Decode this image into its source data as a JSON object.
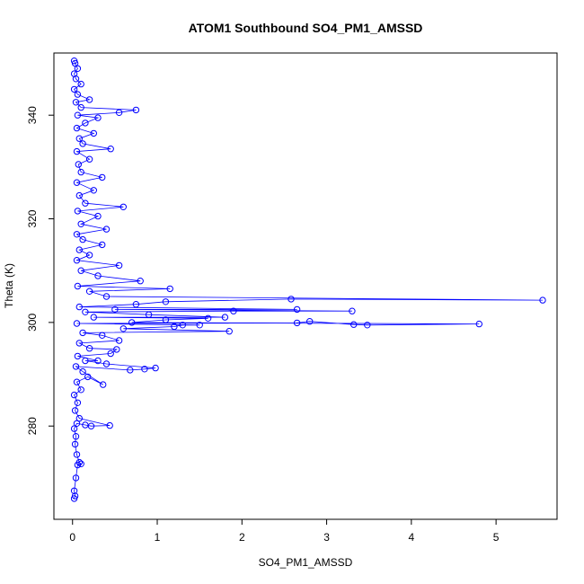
{
  "chart_data": {
    "type": "scatter",
    "title": "ATOM1 Southbound SO4_PM1_AMSSD",
    "xlabel": "SO4_PM1_AMSSD",
    "ylabel": "Theta (K)",
    "xlim": [
      -0.22,
      5.72
    ],
    "ylim": [
      262,
      352
    ],
    "xticks": [
      0,
      1,
      2,
      3,
      4,
      5
    ],
    "yticks": [
      280,
      300,
      320,
      340
    ],
    "grid": false,
    "point_color": "#0000ff",
    "line_color": "#0000ff",
    "series": [
      {
        "name": "",
        "points": [
          [
            0.02,
            266.0
          ],
          [
            0.03,
            266.5
          ],
          [
            0.02,
            267.5
          ],
          [
            0.04,
            270.0
          ],
          [
            0.06,
            272.5
          ],
          [
            0.1,
            272.7
          ],
          [
            0.08,
            273.0
          ],
          [
            0.05,
            274.5
          ],
          [
            0.03,
            276.5
          ],
          [
            0.04,
            278.0
          ],
          [
            0.02,
            279.5
          ],
          [
            0.05,
            280.5
          ],
          [
            0.15,
            280.2
          ],
          [
            0.22,
            280.0
          ],
          [
            0.44,
            280.1
          ],
          [
            0.08,
            281.5
          ],
          [
            0.03,
            283.0
          ],
          [
            0.06,
            284.5
          ],
          [
            0.02,
            286.0
          ],
          [
            0.1,
            287.0
          ],
          [
            0.05,
            288.5
          ],
          [
            0.18,
            289.5
          ],
          [
            0.36,
            288.0
          ],
          [
            0.12,
            290.5
          ],
          [
            0.04,
            291.5
          ],
          [
            0.68,
            290.8
          ],
          [
            0.85,
            291.0
          ],
          [
            0.98,
            291.2
          ],
          [
            0.4,
            292.0
          ],
          [
            0.15,
            292.6
          ],
          [
            0.3,
            292.6
          ],
          [
            0.06,
            293.5
          ],
          [
            0.45,
            294.0
          ],
          [
            0.52,
            294.8
          ],
          [
            0.2,
            295.0
          ],
          [
            0.08,
            296.0
          ],
          [
            0.55,
            296.5
          ],
          [
            0.35,
            297.5
          ],
          [
            0.12,
            298.0
          ],
          [
            1.85,
            298.3
          ],
          [
            0.6,
            298.8
          ],
          [
            1.2,
            299.2
          ],
          [
            1.3,
            299.5
          ],
          [
            1.5,
            299.5
          ],
          [
            0.05,
            299.8
          ],
          [
            2.65,
            299.9
          ],
          [
            2.8,
            300.2
          ],
          [
            3.32,
            299.6
          ],
          [
            3.48,
            299.5
          ],
          [
            4.8,
            299.7
          ],
          [
            0.7,
            300.0
          ],
          [
            1.1,
            300.5
          ],
          [
            1.6,
            300.8
          ],
          [
            0.25,
            301.0
          ],
          [
            1.8,
            301.0
          ],
          [
            0.9,
            301.5
          ],
          [
            0.15,
            302.0
          ],
          [
            1.9,
            302.2
          ],
          [
            3.3,
            302.2
          ],
          [
            0.5,
            302.5
          ],
          [
            2.65,
            302.5
          ],
          [
            0.08,
            303.0
          ],
          [
            0.75,
            303.5
          ],
          [
            1.1,
            304.0
          ],
          [
            2.58,
            304.5
          ],
          [
            5.55,
            304.3
          ],
          [
            0.4,
            305.0
          ],
          [
            0.2,
            306.0
          ],
          [
            1.15,
            306.5
          ],
          [
            0.06,
            307.0
          ],
          [
            0.8,
            308.0
          ],
          [
            0.3,
            309.0
          ],
          [
            0.1,
            310.0
          ],
          [
            0.55,
            311.0
          ],
          [
            0.05,
            312.0
          ],
          [
            0.2,
            313.0
          ],
          [
            0.08,
            314.0
          ],
          [
            0.35,
            315.0
          ],
          [
            0.12,
            316.0
          ],
          [
            0.05,
            317.0
          ],
          [
            0.4,
            318.0
          ],
          [
            0.1,
            319.0
          ],
          [
            0.3,
            320.5
          ],
          [
            0.06,
            321.5
          ],
          [
            0.6,
            322.3
          ],
          [
            0.15,
            323.0
          ],
          [
            0.08,
            324.5
          ],
          [
            0.25,
            325.5
          ],
          [
            0.05,
            327.0
          ],
          [
            0.35,
            328.0
          ],
          [
            0.1,
            329.0
          ],
          [
            0.07,
            330.5
          ],
          [
            0.2,
            331.5
          ],
          [
            0.05,
            333.0
          ],
          [
            0.45,
            333.5
          ],
          [
            0.12,
            334.5
          ],
          [
            0.08,
            335.5
          ],
          [
            0.25,
            336.5
          ],
          [
            0.05,
            337.5
          ],
          [
            0.15,
            338.5
          ],
          [
            0.3,
            339.5
          ],
          [
            0.06,
            340.0
          ],
          [
            0.55,
            340.5
          ],
          [
            0.75,
            341.0
          ],
          [
            0.1,
            341.5
          ],
          [
            0.04,
            342.5
          ],
          [
            0.2,
            343.0
          ],
          [
            0.06,
            344.0
          ],
          [
            0.02,
            345.0
          ],
          [
            0.1,
            346.0
          ],
          [
            0.04,
            347.0
          ],
          [
            0.02,
            348.0
          ],
          [
            0.06,
            349.0
          ],
          [
            0.03,
            350.0
          ],
          [
            0.02,
            350.5
          ]
        ]
      }
    ]
  }
}
